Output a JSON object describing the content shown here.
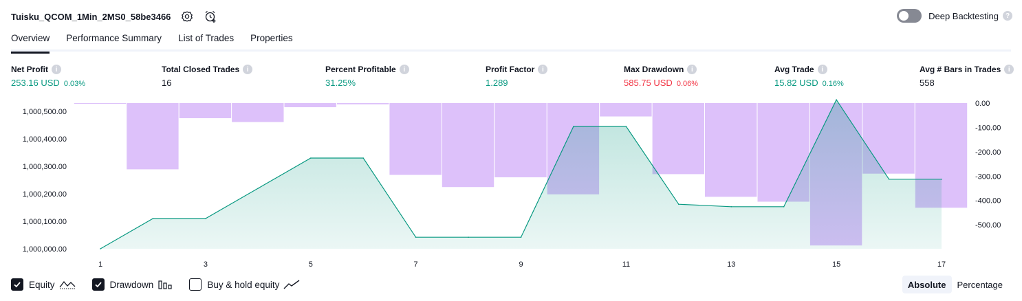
{
  "header": {
    "strategy_name": "Tuisku_QCOM_1Min_2MS0_58be3466",
    "deep_backtesting_label": "Deep Backtesting",
    "deep_backtesting_enabled": false
  },
  "tabs": [
    {
      "label": "Overview",
      "active": true
    },
    {
      "label": "Performance Summary",
      "active": false
    },
    {
      "label": "List of Trades",
      "active": false
    },
    {
      "label": "Properties",
      "active": false
    }
  ],
  "metrics": [
    {
      "label": "Net Profit",
      "value": "253.16 USD",
      "pct": "0.03%",
      "tone": "green"
    },
    {
      "label": "Total Closed Trades",
      "value": "16",
      "pct": "",
      "tone": "dark"
    },
    {
      "label": "Percent Profitable",
      "value": "31.25%",
      "pct": "",
      "tone": "green"
    },
    {
      "label": "Profit Factor",
      "value": "1.289",
      "pct": "",
      "tone": "green"
    },
    {
      "label": "Max Drawdown",
      "value": "585.75 USD",
      "pct": "0.06%",
      "tone": "red"
    },
    {
      "label": "Avg Trade",
      "value": "15.82 USD",
      "pct": "0.16%",
      "tone": "green"
    },
    {
      "label": "Avg # Bars in Trades",
      "value": "558",
      "pct": "",
      "tone": "dark"
    }
  ],
  "chart_data": {
    "type": "line",
    "x": [
      1,
      2,
      3,
      4,
      5,
      6,
      7,
      8,
      9,
      10,
      11,
      12,
      13,
      14,
      15,
      16,
      17
    ],
    "x_tick_labels": [
      "1",
      "3",
      "5",
      "7",
      "9",
      "11",
      "13",
      "15",
      "17"
    ],
    "left_axis": {
      "ylim": [
        999980,
        1000555
      ],
      "ticks": [
        1000000,
        1000100,
        1000200,
        1000300,
        1000400,
        1000500
      ],
      "tick_labels": [
        "1,000,000.00",
        "1,000,100.00",
        "1,000,200.00",
        "1,000,300.00",
        "1,000,400.00",
        "1,000,500.00"
      ]
    },
    "right_axis": {
      "ylim": [
        -590,
        0
      ],
      "ticks": [
        0,
        -100,
        -200,
        -300,
        -400,
        -500
      ],
      "tick_labels": [
        "0.00",
        "-100.00",
        "-200.00",
        "-300.00",
        "-400.00",
        "-500.00"
      ]
    },
    "series": [
      {
        "name": "Equity",
        "axis": "left",
        "color": "#089981",
        "values": [
          1000000,
          1000110,
          1000110,
          1000220,
          1000330,
          1000330,
          1000042,
          1000042,
          1000042,
          1000445,
          1000445,
          1000162,
          1000153,
          1000153,
          1000542,
          1000253,
          1000253
        ]
      },
      {
        "name": "Drawdown",
        "axis": "right",
        "type": "bar",
        "color": "#c798f7",
        "values": [
          -2,
          -272,
          -62,
          -78,
          -17,
          -5,
          -295,
          -345,
          -305,
          -375,
          -55,
          -292,
          -385,
          -405,
          -585,
          -290,
          -430
        ]
      }
    ],
    "grid": false
  },
  "legend": [
    {
      "label": "Equity",
      "checked": true,
      "glyph": "equity-line-icon"
    },
    {
      "label": "Drawdown",
      "checked": true,
      "glyph": "drawdown-bars-icon"
    },
    {
      "label": "Buy & hold equity",
      "checked": false,
      "glyph": "buy-hold-line-icon"
    }
  ],
  "modes": [
    {
      "label": "Absolute",
      "active": true
    },
    {
      "label": "Percentage",
      "active": false
    }
  ],
  "colors": {
    "accent_green": "#089981",
    "accent_red": "#f23645",
    "drawdown_fill": "#c798f7",
    "text": "#131722"
  }
}
